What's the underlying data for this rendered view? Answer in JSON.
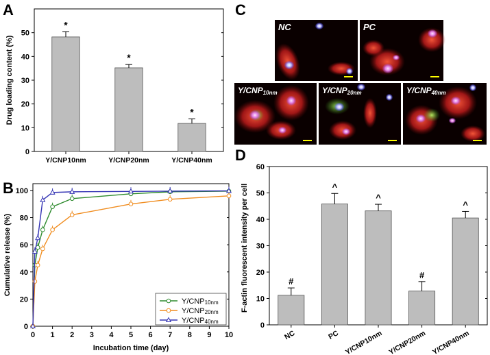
{
  "panels": {
    "a": "A",
    "b": "B",
    "c": "C",
    "d": "D"
  },
  "chart_data": [
    {
      "panel": "A",
      "type": "bar",
      "categories": [
        "Y/CNP10nm",
        "Y/CNP20nm",
        "Y/CNP40nm"
      ],
      "values": [
        48.2,
        35.2,
        11.8
      ],
      "errors": [
        2.2,
        1.4,
        1.9
      ],
      "annotations": [
        "*",
        "*",
        "*"
      ],
      "xlabel": "",
      "ylabel": "Drug loading content (%)",
      "ylim": [
        0,
        60
      ],
      "yticks": [
        0,
        10,
        20,
        30,
        40,
        50
      ],
      "ytick_labels": [
        "0",
        "10",
        "20",
        "30",
        "40",
        "50"
      ],
      "bar_color": "#bdbdbd"
    },
    {
      "panel": "B",
      "type": "line",
      "x": [
        0,
        0.1,
        0.25,
        0.5,
        1,
        2,
        5,
        7,
        10
      ],
      "series": [
        {
          "name": "Y/CNP",
          "sub": "10nm",
          "color": "#2e8b2e",
          "values": [
            0,
            45,
            58,
            71,
            88,
            94,
            97.5,
            99,
            99.5
          ]
        },
        {
          "name": "Y/CNP",
          "sub": "20nm",
          "color": "#f08c1e",
          "values": [
            0,
            33,
            45,
            57,
            71,
            82,
            90,
            93.5,
            96
          ]
        },
        {
          "name": "Y/CNP",
          "sub": "40nm",
          "color": "#3434b4",
          "values": [
            0,
            55,
            65,
            93,
            98.5,
            99,
            99.3,
            99.5,
            99.7
          ]
        }
      ],
      "xlabel": "Incubation time (day)",
      "ylabel": "Cumulative release (%)",
      "xlim": [
        0,
        10
      ],
      "ylim": [
        0,
        105
      ],
      "xticks": [
        0,
        1,
        2,
        3,
        4,
        5,
        6,
        7,
        8,
        9,
        10
      ],
      "xtick_labels": [
        "0",
        "1",
        "2",
        "3",
        "4",
        "5",
        "6",
        "7",
        "8",
        "9",
        "10"
      ],
      "yticks": [
        0,
        20,
        40,
        60,
        80,
        100
      ],
      "ytick_labels": [
        "0",
        "20",
        "40",
        "60",
        "80",
        "100"
      ],
      "legend_position": "bottom-right"
    },
    {
      "panel": "D",
      "type": "bar",
      "categories": [
        "NC",
        "PC",
        "Y/CNP10nm",
        "Y/CNP20nm",
        "Y/CNP40nm"
      ],
      "values": [
        11.2,
        45.8,
        43.2,
        12.8,
        40.5
      ],
      "errors": [
        2.8,
        4.0,
        2.5,
        3.6,
        2.5
      ],
      "annotations": [
        "#",
        "^",
        "^",
        "#",
        "^"
      ],
      "xlabel": "",
      "ylabel": "F-actin fluorescent intensity per cell",
      "ylim": [
        0,
        60
      ],
      "yticks": [
        0,
        10,
        20,
        30,
        40,
        50,
        60
      ],
      "ytick_labels": [
        "0",
        "10",
        "20",
        "30",
        "40",
        "50",
        "60"
      ],
      "bar_color": "#bdbdbd"
    }
  ],
  "micrographs": [
    {
      "label": "NC",
      "sub": ""
    },
    {
      "label": "PC",
      "sub": ""
    },
    {
      "label": "Y/CNP",
      "sub": "10nm"
    },
    {
      "label": "Y/CNP",
      "sub": "20nm"
    },
    {
      "label": "Y/CNP",
      "sub": "40nm"
    }
  ]
}
